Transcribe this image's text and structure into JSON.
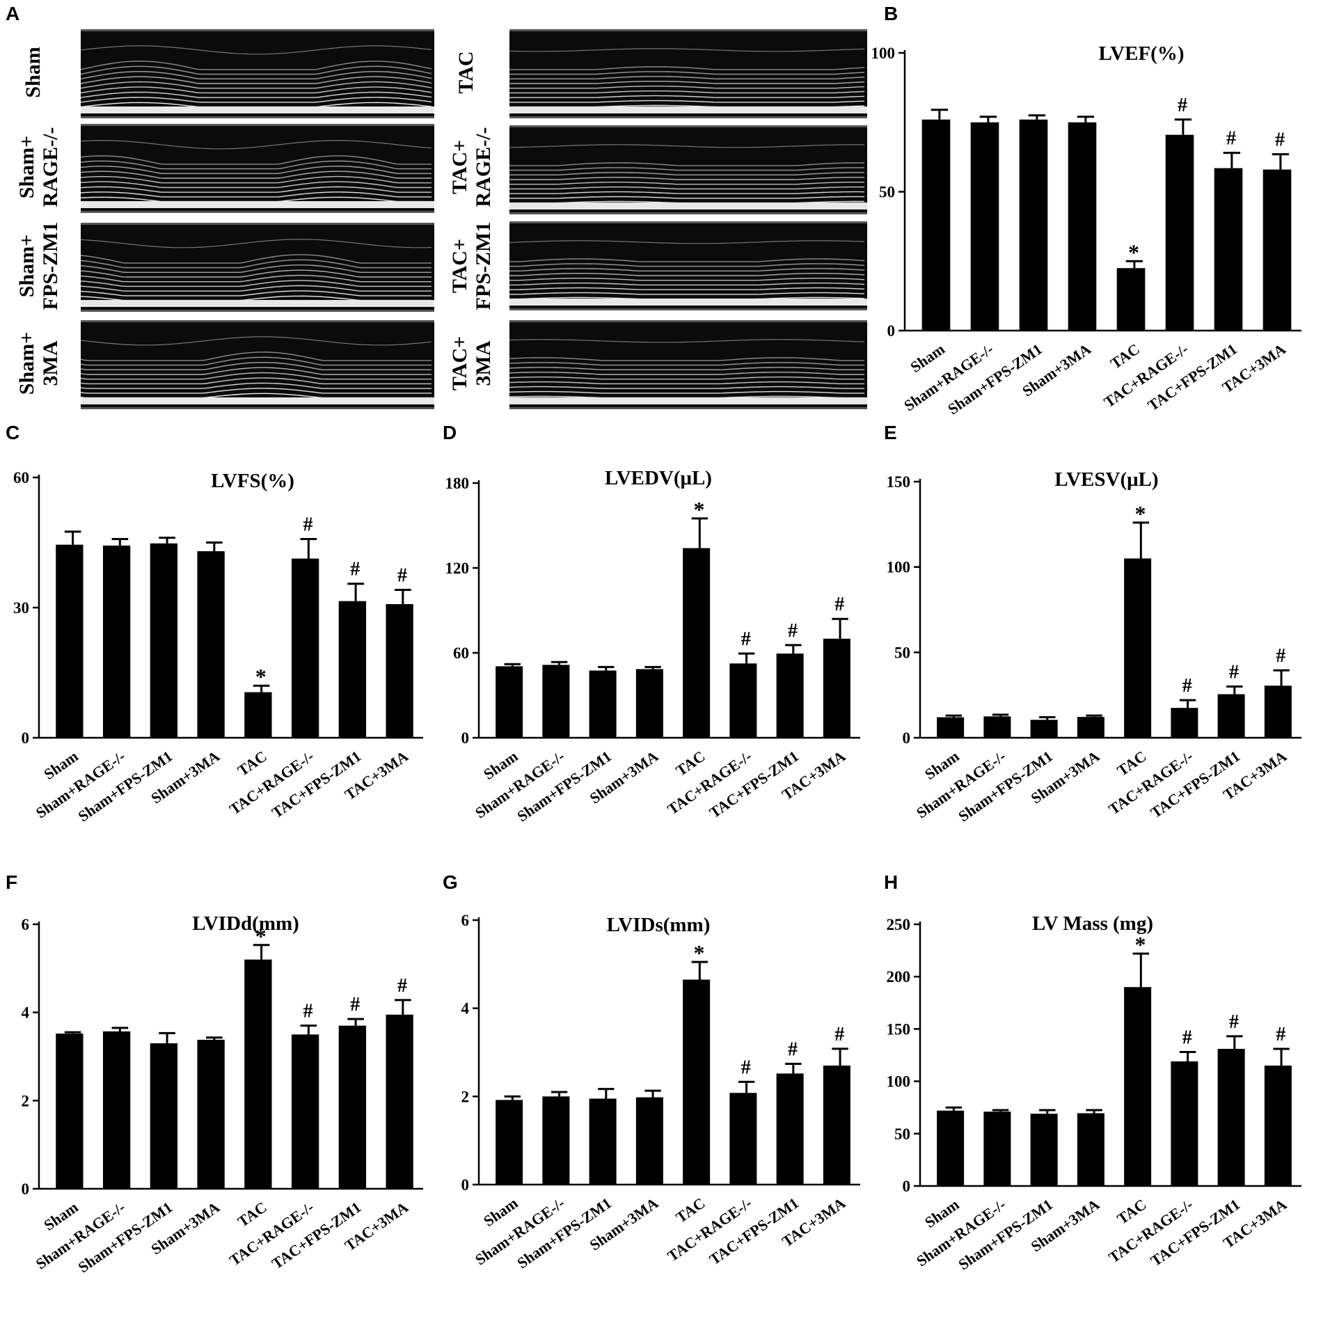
{
  "panel_letters": {
    "A": "A",
    "B": "B",
    "C": "C",
    "D": "D",
    "E": "E",
    "F": "F",
    "G": "G",
    "H": "H"
  },
  "echo_labels": {
    "sham": "Sham",
    "sham_rage_line1": "Sham+",
    "sham_rage_line2": "RAGE-/-",
    "sham_fps_line1": "Sham+",
    "sham_fps_line2": "FPS-ZM1",
    "sham_3ma_line1": "Sham+",
    "sham_3ma_line2": "3MA",
    "tac": "TAC",
    "tac_rage_line1": "TAC+",
    "tac_rage_line2": "RAGE-/-",
    "tac_fps_line1": "TAC+",
    "tac_fps_line2": "FPS-ZM1",
    "tac_3ma_line1": "TAC+",
    "tac_3ma_line2": "3MA"
  },
  "chart_data": [
    {
      "id": "B",
      "type": "bar",
      "title": "LVEF(%)",
      "ylim": [
        0,
        100
      ],
      "yticks": [
        0,
        50,
        100
      ],
      "categories": [
        "Sham",
        "Sham+RAGE-/-",
        "Sham+FPS-ZM1",
        "Sham+3MA",
        "TAC",
        "TAC+RAGE-/-",
        "TAC+FPS-ZM1",
        "TAC+3MA"
      ],
      "values": [
        76,
        75,
        76,
        75,
        22.5,
        70.5,
        58.5,
        58
      ],
      "errors": [
        3.5,
        2,
        1.5,
        2,
        2.5,
        5.5,
        5.5,
        5.5
      ],
      "markers": [
        "",
        "",
        "",
        "",
        "*",
        "#",
        "#",
        "#"
      ]
    },
    {
      "id": "C",
      "type": "bar",
      "title": "LVFS(%)",
      "ylim": [
        0,
        60
      ],
      "yticks": [
        0,
        30,
        60
      ],
      "categories": [
        "Sham",
        "Sham+RAGE-/-",
        "Sham+FPS-ZM1",
        "Sham+3MA",
        "TAC",
        "TAC+RAGE-/-",
        "TAC+FPS-ZM1",
        "TAC+3MA"
      ],
      "values": [
        44.5,
        44.3,
        44.8,
        43,
        10.5,
        41.3,
        31.5,
        30.8
      ],
      "errors": [
        3,
        1.5,
        1.3,
        2,
        1.5,
        4.5,
        4,
        3.3
      ],
      "markers": [
        "",
        "",
        "",
        "",
        "*",
        "#",
        "#",
        "#"
      ]
    },
    {
      "id": "D",
      "type": "bar",
      "title": "LVEDV(μL)",
      "ylim": [
        0,
        180
      ],
      "yticks": [
        0,
        60,
        120,
        180
      ],
      "categories": [
        "Sham",
        "Sham+RAGE-/-",
        "Sham+FPS-ZM1",
        "Sham+3MA",
        "TAC",
        "TAC+RAGE-/-",
        "TAC+FPS-ZM1",
        "TAC+3MA"
      ],
      "values": [
        50.5,
        51.5,
        47.5,
        48.5,
        134,
        52.5,
        59.5,
        70
      ],
      "errors": [
        1.5,
        2,
        2.5,
        1.5,
        21,
        7,
        6,
        14
      ],
      "markers": [
        "",
        "",
        "",
        "",
        "*",
        "#",
        "#",
        "#"
      ]
    },
    {
      "id": "E",
      "type": "bar",
      "title": "LVESV(μL)",
      "ylim": [
        0,
        150
      ],
      "yticks": [
        0,
        50,
        100,
        150
      ],
      "categories": [
        "Sham",
        "Sham+RAGE-/-",
        "Sham+FPS-ZM1",
        "Sham+3MA",
        "TAC",
        "TAC+RAGE-/-",
        "TAC+FPS-ZM1",
        "TAC+3MA"
      ],
      "values": [
        12,
        12.5,
        10.5,
        12.2,
        105,
        17.5,
        25.5,
        30.5
      ],
      "errors": [
        1,
        1,
        1.5,
        0.8,
        21,
        4.5,
        4.5,
        9
      ],
      "markers": [
        "",
        "",
        "",
        "",
        "*",
        "#",
        "#",
        "#"
      ]
    },
    {
      "id": "F",
      "type": "bar",
      "title": "LVIDd(mm)",
      "ylim": [
        0,
        6
      ],
      "yticks": [
        0,
        2,
        4,
        6
      ],
      "categories": [
        "Sham",
        "Sham+RAGE-/-",
        "Sham+FPS-ZM1",
        "Sham+3MA",
        "TAC",
        "TAC+RAGE-/-",
        "TAC+FPS-ZM1",
        "TAC+3MA"
      ],
      "values": [
        3.52,
        3.57,
        3.3,
        3.38,
        5.2,
        3.5,
        3.7,
        3.95
      ],
      "errors": [
        0.03,
        0.08,
        0.23,
        0.05,
        0.33,
        0.2,
        0.15,
        0.33
      ],
      "markers": [
        "",
        "",
        "",
        "",
        "*",
        "#",
        "#",
        "#"
      ]
    },
    {
      "id": "G",
      "type": "bar",
      "title": "LVIDs(mm)",
      "ylim": [
        0,
        6
      ],
      "yticks": [
        0,
        2,
        4,
        6
      ],
      "categories": [
        "Sham",
        "Sham+RAGE-/-",
        "Sham+FPS-ZM1",
        "Sham+3MA",
        "TAC",
        "TAC+RAGE-/-",
        "TAC+FPS-ZM1",
        "TAC+3MA"
      ],
      "values": [
        1.92,
        2,
        1.95,
        1.98,
        4.65,
        2.08,
        2.52,
        2.7
      ],
      "errors": [
        0.08,
        0.1,
        0.22,
        0.15,
        0.4,
        0.25,
        0.22,
        0.38
      ],
      "markers": [
        "",
        "",
        "",
        "",
        "*",
        "#",
        "#",
        "#"
      ]
    },
    {
      "id": "H",
      "type": "bar",
      "title": "LV Mass (mg)",
      "ylim": [
        0,
        250
      ],
      "yticks": [
        0,
        50,
        100,
        150,
        200,
        250
      ],
      "categories": [
        "Sham",
        "Sham+RAGE-/-",
        "Sham+FPS-ZM1",
        "Sham+3MA",
        "TAC",
        "TAC+RAGE-/-",
        "TAC+FPS-ZM1",
        "TAC+3MA"
      ],
      "values": [
        72,
        71,
        69,
        69.5,
        190,
        119,
        131,
        115
      ],
      "errors": [
        3,
        1.5,
        3.5,
        3,
        32,
        9,
        12,
        16
      ],
      "markers": [
        "",
        "",
        "",
        "",
        "*",
        "#",
        "#",
        "#"
      ]
    }
  ]
}
